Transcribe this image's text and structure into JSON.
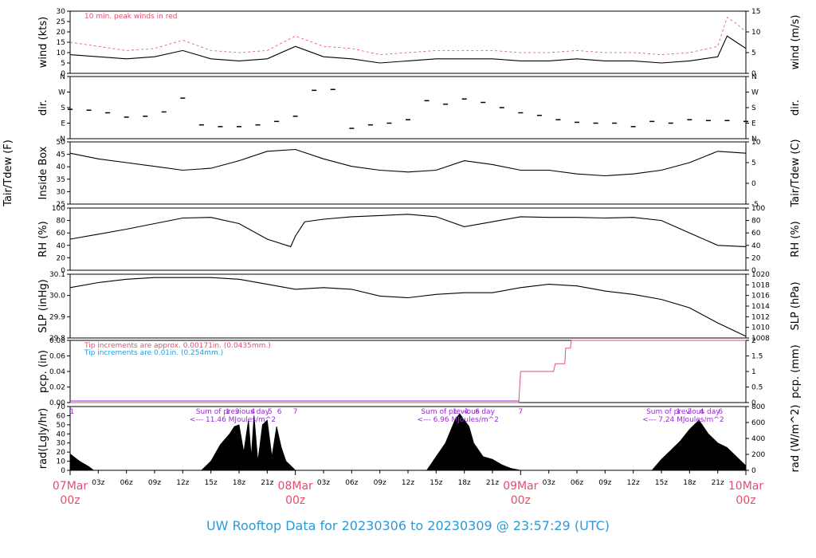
{
  "chart_data": {
    "type": "line",
    "title": "UW Rooftop Data for 20230306  to  20230309 @ 23:57:29  (UTC)",
    "x_axis": {
      "hour_ticks": [
        "03z",
        "06z",
        "09z",
        "12z",
        "15z",
        "18z",
        "21z",
        "03z",
        "06z",
        "09z",
        "12z",
        "15z",
        "18z",
        "21z",
        "03z",
        "06z",
        "09z",
        "12z",
        "15z",
        "18z",
        "21z"
      ],
      "day_labels": [
        {
          "date": "07Mar",
          "hour": "00z"
        },
        {
          "date": "08Mar",
          "hour": "00z"
        },
        {
          "date": "09Mar",
          "hour": "00z"
        },
        {
          "date": "10Mar",
          "hour": "00z"
        }
      ],
      "range_hours": [
        0,
        72
      ]
    },
    "panels": [
      {
        "id": "wind",
        "ylabel_left": "wind (kts)",
        "ylabel_right": "wind (m/s)",
        "left_range": [
          0,
          30
        ],
        "left_ticks": [
          "0",
          "5",
          "10",
          "15",
          "20",
          "25",
          "30"
        ],
        "right_ticks": [
          "0",
          "5",
          "10",
          "15"
        ],
        "annotation": "10 min. peak winds in red",
        "series": [
          {
            "name": "wind speed",
            "color": "#000000",
            "hours": [
              0,
              3,
              6,
              9,
              12,
              15,
              18,
              21,
              24,
              27,
              30,
              33,
              36,
              39,
              42,
              45,
              48,
              51,
              54,
              57,
              60,
              63,
              66,
              69,
              70,
              71,
              72
            ],
            "values": [
              9,
              8,
              7,
              8,
              11,
              7,
              6,
              7,
              13,
              8,
              7,
              5,
              6,
              7,
              7,
              7,
              6,
              6,
              7,
              6,
              6,
              5,
              6,
              8,
              18,
              15,
              12
            ]
          },
          {
            "name": "peak",
            "color": "#e0506e",
            "hours": [
              0,
              3,
              6,
              9,
              12,
              15,
              18,
              21,
              24,
              27,
              30,
              33,
              36,
              39,
              42,
              45,
              48,
              51,
              54,
              57,
              60,
              63,
              66,
              69,
              70,
              71,
              72
            ],
            "values": [
              15,
              13,
              11,
              12,
              16,
              11,
              10,
              11,
              18,
              13,
              12,
              9,
              10,
              11,
              11,
              11,
              10,
              10,
              11,
              10,
              10,
              9,
              10,
              13,
              27,
              24,
              20
            ]
          }
        ]
      },
      {
        "id": "dir",
        "ylabel_left": "dir.",
        "ylabel_right": "dir.",
        "left_range": [
          0,
          360
        ],
        "left_ticks": [
          "N",
          "E",
          "S",
          "W",
          "N"
        ],
        "right_ticks": [
          "N",
          "E",
          "S",
          "W",
          "N"
        ],
        "series": [
          {
            "name": "direction",
            "color": "#000000",
            "hours": [
              0,
              2,
              4,
              6,
              8,
              10,
              12,
              14,
              16,
              18,
              20,
              22,
              24,
              26,
              28,
              30,
              32,
              34,
              36,
              38,
              40,
              42,
              44,
              46,
              48,
              50,
              52,
              54,
              56,
              58,
              60,
              62,
              64,
              66,
              68,
              70,
              72
            ],
            "values": [
              170,
              165,
              150,
              125,
              130,
              155,
              235,
              80,
              70,
              70,
              80,
              100,
              130,
              280,
              285,
              60,
              80,
              90,
              110,
              220,
              200,
              230,
              210,
              180,
              150,
              135,
              110,
              95,
              90,
              90,
              70,
              100,
              90,
              110,
              105,
              105,
              100
            ]
          }
        ]
      },
      {
        "id": "temp",
        "ylabel_left": "Inside Box",
        "ylabel_left2": "Tair/Tdew (F)",
        "ylabel_right": "Tair/Tdew (C)",
        "left_range": [
          22,
          55
        ],
        "left_ticks": [
          "25",
          "30",
          "35",
          "40",
          "45",
          "50"
        ],
        "right_ticks": [
          "-5",
          "0",
          "5",
          "10"
        ],
        "series": [
          {
            "name": "Tair",
            "color": "#000000",
            "hours": [
              0,
              3,
              6,
              9,
              12,
              15,
              18,
              21,
              24,
              27,
              30,
              33,
              36,
              39,
              42,
              45,
              48,
              51,
              54,
              57,
              60,
              63,
              66,
              69,
              72
            ],
            "values": [
              49,
              46,
              44,
              42,
              40,
              41,
              45,
              50,
              51,
              46,
              42,
              40,
              39,
              40,
              45,
              43,
              40,
              40,
              38,
              37,
              38,
              40,
              44,
              50,
              49
            ]
          }
        ]
      },
      {
        "id": "rh",
        "ylabel_left": "RH (%)",
        "ylabel_right": "RH (%)",
        "left_range": [
          0,
          100
        ],
        "left_ticks": [
          "0",
          "20",
          "40",
          "60",
          "80",
          "100"
        ],
        "right_ticks": [
          "0",
          "20",
          "40",
          "60",
          "80",
          "100"
        ],
        "series": [
          {
            "name": "RH",
            "color": "#000000",
            "hours": [
              0,
              3,
              6,
              9,
              12,
              15,
              18,
              21,
              23.5,
              24,
              25,
              27,
              30,
              33,
              36,
              39,
              42,
              45,
              48,
              51,
              54,
              57,
              60,
              63,
              66,
              69,
              72
            ],
            "values": [
              50,
              58,
              66,
              75,
              84,
              85,
              75,
              50,
              38,
              55,
              78,
              82,
              86,
              88,
              90,
              86,
              70,
              78,
              86,
              85,
              85,
              84,
              85,
              80,
              60,
              40,
              38
            ]
          }
        ]
      },
      {
        "id": "slp",
        "ylabel_left": "SLP (inHg)",
        "ylabel_right": "SLP (hPa)",
        "left_range": [
          29.75,
          30.13
        ],
        "left_ticks": [
          "29.8",
          "29.9",
          "30.0",
          "30.1"
        ],
        "right_ticks": [
          "1008",
          "1010",
          "1012",
          "1014",
          "1016",
          "1018",
          "1020"
        ],
        "series": [
          {
            "name": "SLP",
            "color": "#000000",
            "hours": [
              0,
              3,
              6,
              9,
              12,
              15,
              18,
              21,
              24,
              27,
              30,
              33,
              36,
              39,
              42,
              45,
              48,
              51,
              54,
              57,
              60,
              63,
              66,
              69,
              72
            ],
            "values": [
              30.05,
              30.08,
              30.1,
              30.11,
              30.11,
              30.11,
              30.1,
              30.07,
              30.04,
              30.05,
              30.04,
              30.0,
              29.99,
              30.01,
              30.02,
              30.02,
              30.05,
              30.07,
              30.06,
              30.03,
              30.01,
              29.98,
              29.93,
              29.84,
              29.76
            ]
          }
        ]
      },
      {
        "id": "pcp",
        "ylabel_left": "pcp. (in)",
        "ylabel_right": "pcp. (mm)",
        "left_range": [
          0,
          0.08
        ],
        "left_ticks": [
          "0.00",
          "0.02",
          "0.04",
          "0.06",
          "0.08"
        ],
        "right_ticks": [
          "0",
          "0.5",
          "1",
          "1.5",
          "2"
        ],
        "annotation_red": "Tip increments are approx. 0.00171in. (0.0435mm.)",
        "annotation_blue": "Tip increments are 0.01in. (0.254mm.)",
        "series": [
          {
            "name": "precip accumulation",
            "color": "#e0506e",
            "hours": [
              0,
              47.8,
              48,
              51.5,
              51.7,
              52.7,
              52.8,
              53.3,
              53.4,
              72
            ],
            "values": [
              0,
              0,
              0.04,
              0.04,
              0.05,
              0.05,
              0.07,
              0.07,
              0.08,
              0.08
            ]
          }
        ]
      },
      {
        "id": "rad",
        "ylabel_left": "rad(Lgly/hr)",
        "ylabel_right": "rad (W/m^2)",
        "left_range": [
          0,
          70
        ],
        "left_ticks": [
          "0",
          "10",
          "20",
          "30",
          "40",
          "50",
          "60",
          "70"
        ],
        "right_ticks": [
          "0",
          "200",
          "400",
          "600",
          "800"
        ],
        "annotations": [
          {
            "line1": "Sum of previous day",
            "line2": "<--- 11.46 MJoules/m^2"
          },
          {
            "line1": "Sum of previous day",
            "line2": "<--- 6.96 MJoules/m^2"
          },
          {
            "line1": "Sum of previous day",
            "line2": "<--- 7.24 MJoules/m^2"
          }
        ],
        "markers": [
          {
            "hour": 0.2,
            "label": "1"
          },
          {
            "hour": 16.8,
            "label": "1"
          },
          {
            "hour": 17.8,
            "label": "3"
          },
          {
            "hour": 19.5,
            "label": "4"
          },
          {
            "hour": 21.3,
            "label": "5"
          },
          {
            "hour": 22.3,
            "label": "6"
          },
          {
            "hour": 24.0,
            "label": "7"
          },
          {
            "hour": 41.0,
            "label": "1"
          },
          {
            "hour": 42.2,
            "label": "4"
          },
          {
            "hour": 43.4,
            "label": "6"
          },
          {
            "hour": 48.0,
            "label": "7"
          },
          {
            "hour": 64.8,
            "label": "1"
          },
          {
            "hour": 66.0,
            "label": "2"
          },
          {
            "hour": 67.3,
            "label": "4"
          },
          {
            "hour": 69.3,
            "label": "6"
          }
        ],
        "series": [
          {
            "name": "radiation",
            "color": "#000000",
            "hours": [
              0,
              1,
              2,
              2.5,
              14,
              15,
              16,
              17,
              17.5,
              18,
              18.5,
              19,
              19.3,
              19.6,
              20,
              20.5,
              21,
              21.5,
              22,
              22.5,
              23,
              24,
              38,
              39,
              40,
              41,
              41.5,
              42,
              42.5,
              43,
              44,
              45,
              46,
              47,
              48,
              62,
              63,
              64,
              65,
              66,
              67,
              68,
              69,
              70,
              71,
              72
            ],
            "values": [
              18,
              10,
              4,
              0,
              0,
              10,
              28,
              40,
              48,
              50,
              20,
              55,
              15,
              60,
              10,
              50,
              55,
              15,
              48,
              25,
              10,
              0,
              0,
              15,
              30,
              55,
              62,
              55,
              48,
              30,
              15,
              12,
              6,
              2,
              0,
              0,
              12,
              22,
              32,
              45,
              55,
              40,
              30,
              25,
              15,
              5
            ]
          }
        ]
      }
    ]
  }
}
